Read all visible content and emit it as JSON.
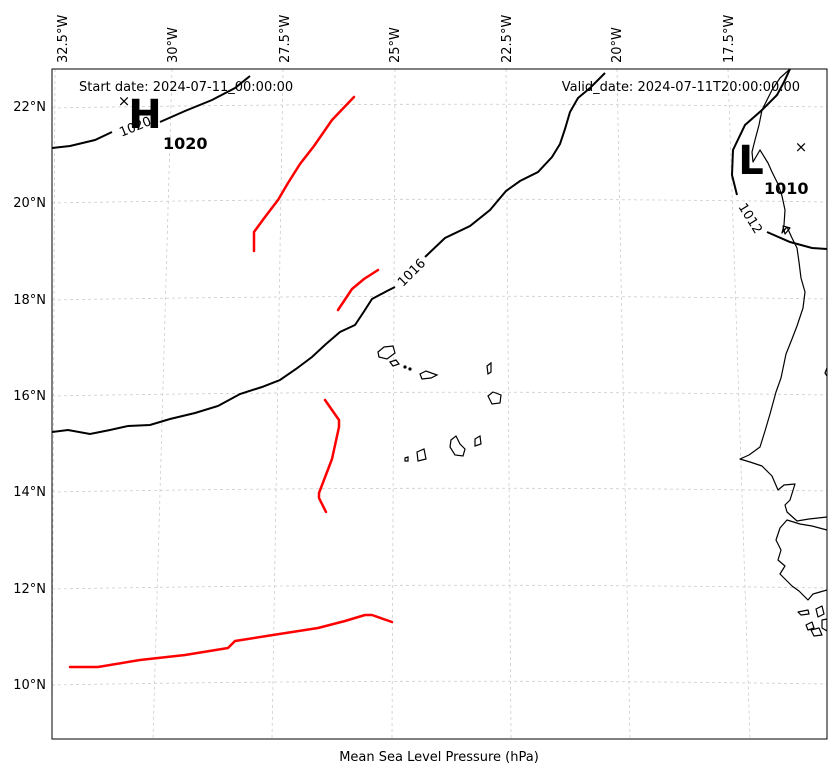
{
  "header": {
    "start_date": "Start date: 2024-07-11_00:00:00",
    "valid_date": "Valid_date: 2024-07-11T20:00:00.00"
  },
  "footer": {
    "xlabel": "Mean Sea Level Pressure (hPa)"
  },
  "longitude_labels": [
    "32.5°W",
    "30°W",
    "27.5°W",
    "25°W",
    "22.5°W",
    "20°W",
    "17.5°W"
  ],
  "latitude_labels": [
    "22°N",
    "20°N",
    "18°N",
    "16°N",
    "14°N",
    "12°N",
    "10°N"
  ],
  "pressure_centers": [
    {
      "symbol": "H",
      "value": "1020"
    },
    {
      "symbol": "L",
      "value": "1010"
    }
  ],
  "isobar_labels": [
    "1020",
    "1016",
    "1012"
  ],
  "colors": {
    "isobar": "#000000",
    "trough_axis": "#ff0000",
    "coastline": "#000000",
    "grid": "#cccccc",
    "background": "#ffffff"
  }
}
